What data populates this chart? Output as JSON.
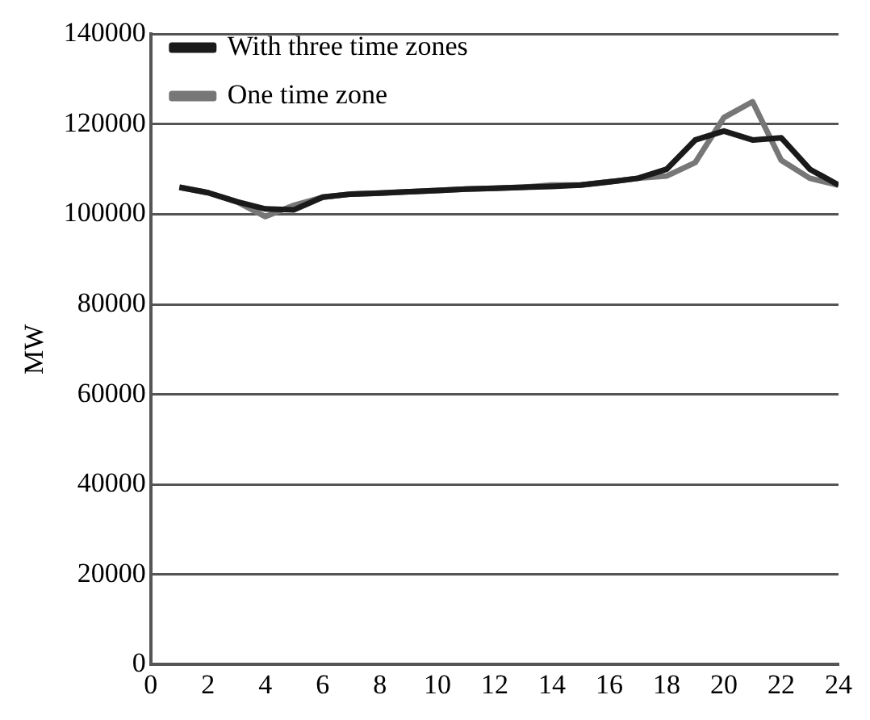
{
  "chart_data": {
    "type": "line",
    "ylabel": "MW",
    "x": [
      1,
      2,
      3,
      4,
      5,
      6,
      7,
      8,
      9,
      10,
      11,
      12,
      13,
      14,
      15,
      16,
      17,
      18,
      19,
      20,
      21,
      22,
      23,
      24
    ],
    "series": [
      {
        "name": "With three time zones",
        "color": "#1a1a1a",
        "values": [
          106000,
          104800,
          102800,
          101200,
          101000,
          103800,
          104500,
          104700,
          105000,
          105300,
          105600,
          105800,
          106000,
          106200,
          106500,
          107200,
          108000,
          110000,
          116500,
          118500,
          116500,
          117000,
          110000,
          106500
        ]
      },
      {
        "name": "One time zone",
        "color": "#777777",
        "values": [
          106000,
          104800,
          102800,
          99500,
          102000,
          103800,
          104500,
          104700,
          105000,
          105300,
          105600,
          105800,
          106000,
          106500,
          106500,
          107200,
          108000,
          108500,
          111500,
          121500,
          125000,
          112000,
          108000,
          106500
        ]
      }
    ],
    "xlim": [
      0,
      24
    ],
    "xticks": [
      0,
      2,
      4,
      6,
      8,
      10,
      12,
      14,
      16,
      18,
      20,
      22,
      24
    ],
    "ylim": [
      0,
      140000
    ],
    "yticks": [
      0,
      20000,
      40000,
      60000,
      80000,
      100000,
      120000,
      140000
    ],
    "grid": "y",
    "legend": "top left",
    "marker": "none",
    "line_style": "solid"
  }
}
